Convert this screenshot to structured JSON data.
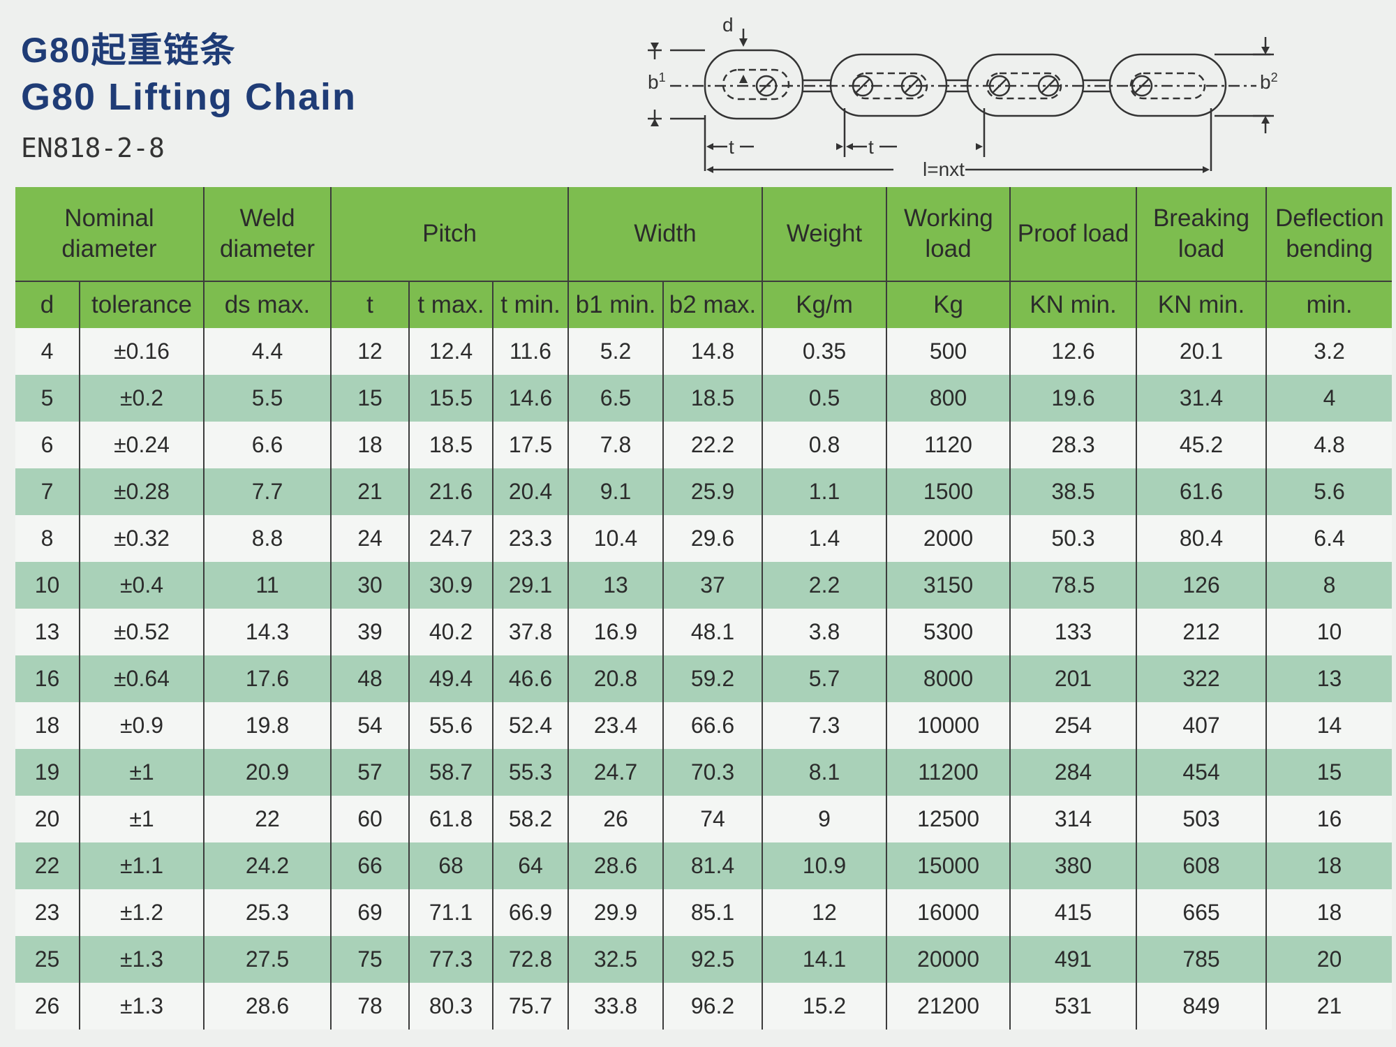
{
  "title_cn": "G80起重链条",
  "title_en": "G80 Lifting Chain",
  "standard": "EN818-2-8",
  "diagram_labels": {
    "d": "d",
    "b1": "b",
    "b1_sup": "1",
    "b2": "b",
    "b2_sup": "2",
    "t1": "t",
    "t2": "t",
    "l": "l=nxt"
  },
  "groups": [
    "Nominal diameter",
    "Weld diameter",
    "Pitch",
    "Width",
    "Weight",
    "Working load",
    "Proof load",
    "Breaking load",
    "Deflection bending"
  ],
  "subheaders": [
    "d",
    "tolerance",
    "ds max.",
    "t",
    "t max.",
    "t min.",
    "b1 min.",
    "b2 max.",
    "Kg/m",
    "Kg",
    "KN min.",
    "KN min.",
    "min."
  ],
  "rows": [
    [
      "4",
      "±0.16",
      "4.4",
      "12",
      "12.4",
      "11.6",
      "5.2",
      "14.8",
      "0.35",
      "500",
      "12.6",
      "20.1",
      "3.2"
    ],
    [
      "5",
      "±0.2",
      "5.5",
      "15",
      "15.5",
      "14.6",
      "6.5",
      "18.5",
      "0.5",
      "800",
      "19.6",
      "31.4",
      "4"
    ],
    [
      "6",
      "±0.24",
      "6.6",
      "18",
      "18.5",
      "17.5",
      "7.8",
      "22.2",
      "0.8",
      "1120",
      "28.3",
      "45.2",
      "4.8"
    ],
    [
      "7",
      "±0.28",
      "7.7",
      "21",
      "21.6",
      "20.4",
      "9.1",
      "25.9",
      "1.1",
      "1500",
      "38.5",
      "61.6",
      "5.6"
    ],
    [
      "8",
      "±0.32",
      "8.8",
      "24",
      "24.7",
      "23.3",
      "10.4",
      "29.6",
      "1.4",
      "2000",
      "50.3",
      "80.4",
      "6.4"
    ],
    [
      "10",
      "±0.4",
      "11",
      "30",
      "30.9",
      "29.1",
      "13",
      "37",
      "2.2",
      "3150",
      "78.5",
      "126",
      "8"
    ],
    [
      "13",
      "±0.52",
      "14.3",
      "39",
      "40.2",
      "37.8",
      "16.9",
      "48.1",
      "3.8",
      "5300",
      "133",
      "212",
      "10"
    ],
    [
      "16",
      "±0.64",
      "17.6",
      "48",
      "49.4",
      "46.6",
      "20.8",
      "59.2",
      "5.7",
      "8000",
      "201",
      "322",
      "13"
    ],
    [
      "18",
      "±0.9",
      "19.8",
      "54",
      "55.6",
      "52.4",
      "23.4",
      "66.6",
      "7.3",
      "10000",
      "254",
      "407",
      "14"
    ],
    [
      "19",
      "±1",
      "20.9",
      "57",
      "58.7",
      "55.3",
      "24.7",
      "70.3",
      "8.1",
      "11200",
      "284",
      "454",
      "15"
    ],
    [
      "20",
      "±1",
      "22",
      "60",
      "61.8",
      "58.2",
      "26",
      "74",
      "9",
      "12500",
      "314",
      "503",
      "16"
    ],
    [
      "22",
      "±1.1",
      "24.2",
      "66",
      "68",
      "64",
      "28.6",
      "81.4",
      "10.9",
      "15000",
      "380",
      "608",
      "18"
    ],
    [
      "23",
      "±1.2",
      "25.3",
      "69",
      "71.1",
      "66.9",
      "29.9",
      "85.1",
      "12",
      "16000",
      "415",
      "665",
      "18"
    ],
    [
      "25",
      "±1.3",
      "27.5",
      "75",
      "77.3",
      "72.8",
      "32.5",
      "92.5",
      "14.1",
      "20000",
      "491",
      "785",
      "20"
    ],
    [
      "26",
      "±1.3",
      "28.6",
      "78",
      "80.3",
      "75.7",
      "33.8",
      "96.2",
      "15.2",
      "21200",
      "531",
      "849",
      "21"
    ]
  ]
}
